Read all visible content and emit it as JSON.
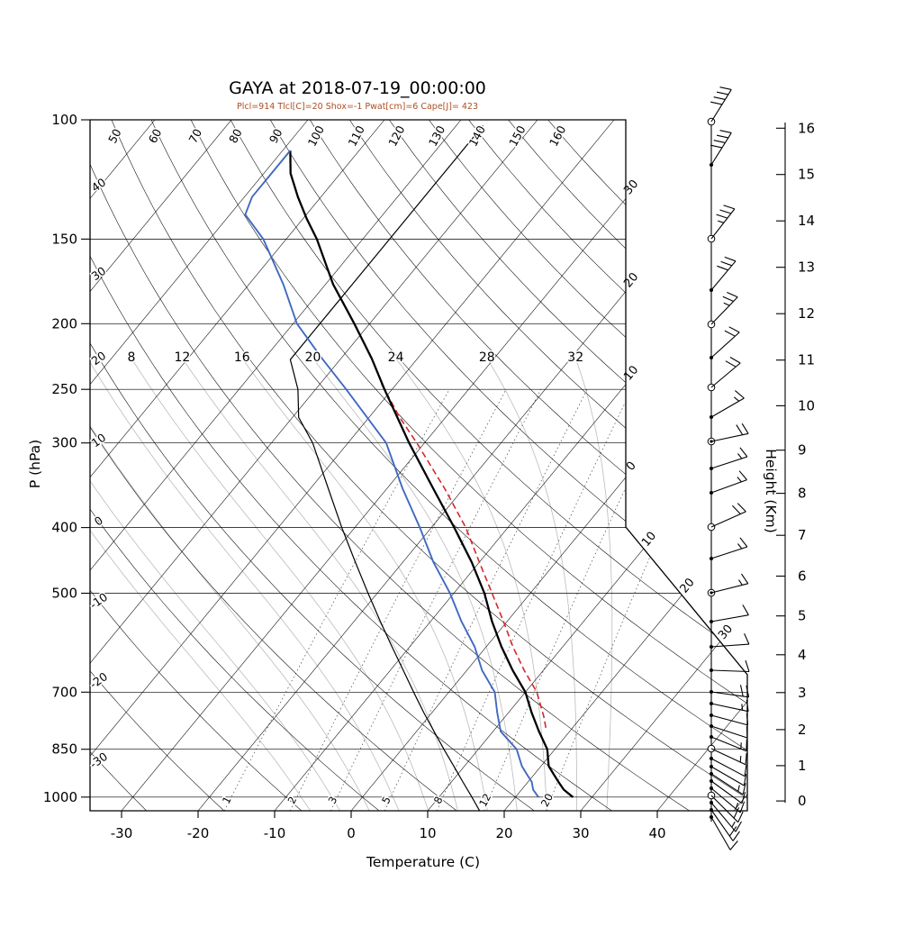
{
  "chart": {
    "title": "GAYA at 2018-07-19_00:00:00",
    "subtitle": "Plcl=914 Tlcl[C]=20 Shox=-1 Pwat[cm]=6 Cape[J]= 423",
    "xlabel": "Temperature (C)",
    "ylabel": "P (hPa)",
    "y2label": "Height (Km)"
  },
  "chart_data": {
    "type": "skewt_logp_sounding",
    "station": "GAYA",
    "valid_time": "2018-07-19_00:00:00",
    "indices": {
      "Plcl_hPa": 914,
      "Tlcl_C": 20,
      "Shox": -1,
      "Pwat_cm": 6,
      "Cape_J": 423
    },
    "colors": {
      "temperature": "#000000",
      "dewpoint": "#4169c1",
      "parcel": "#d62728",
      "subtitle": "#ad4f21",
      "moist_adiabat": "#bbbbbb"
    },
    "axes": {
      "pressure_ticks_hPa": [
        100,
        150,
        200,
        250,
        300,
        400,
        500,
        700,
        850,
        1000
      ],
      "temperature_ticks_C": [
        -30,
        -20,
        -10,
        0,
        10,
        20,
        30,
        40
      ],
      "height_ticks_km": [
        0,
        1,
        2,
        3,
        4,
        5,
        6,
        7,
        8,
        9,
        10,
        11,
        12,
        13,
        14,
        15,
        16
      ]
    },
    "grid": {
      "isotherms_C": {
        "min": -120,
        "max": 60,
        "step": 10
      },
      "dry_adiabats_C": {
        "min": -30,
        "max": 160,
        "step": 10
      },
      "dry_adiabat_top_labels": [
        50,
        60,
        70,
        80,
        90,
        100,
        110,
        120,
        130,
        140,
        150,
        160
      ],
      "dry_adiabat_left_labels": [
        40,
        30,
        20,
        10,
        0,
        -10,
        -20,
        -30
      ],
      "isotherm_edge_label_temps": [
        -30,
        -20,
        -10,
        0,
        10,
        20,
        30
      ],
      "isotherm_edge_labels": [
        "30",
        "20",
        "10",
        "0",
        "10",
        "20",
        "30"
      ],
      "moist_adiabats_C": [
        -8,
        -4,
        0,
        4,
        8,
        12,
        16,
        20,
        24,
        28,
        32
      ],
      "moist_adiabat_labels": [
        8,
        12,
        16,
        20,
        24,
        28,
        32
      ],
      "mixing_ratio_g_kg": [
        1,
        2,
        3,
        5,
        8,
        12,
        20
      ]
    },
    "series": {
      "temperature": {
        "name": "temperature",
        "pressure_hPa": [
          1000,
          975,
          950,
          925,
          900,
          850,
          800,
          750,
          700,
          650,
          600,
          550,
          500,
          450,
          400,
          350,
          300,
          250,
          225,
          200,
          175,
          150,
          140,
          130,
          120,
          111
        ],
        "value_C": [
          27.5,
          25.5,
          24,
          22.5,
          21,
          19,
          16,
          13,
          10,
          6,
          2,
          -2,
          -6,
          -11,
          -17,
          -24,
          -32,
          -41,
          -46,
          -52,
          -59,
          -66,
          -69.5,
          -73,
          -76.5,
          -79
        ]
      },
      "dewpoint": {
        "name": "dewpoint",
        "pressure_hPa": [
          1000,
          975,
          950,
          925,
          900,
          850,
          800,
          750,
          700,
          650,
          600,
          550,
          500,
          450,
          400,
          350,
          300,
          250,
          225,
          200,
          175,
          150,
          138,
          130,
          120,
          111
        ],
        "value_C": [
          23,
          21.5,
          20.5,
          19,
          17.5,
          15,
          11,
          8.5,
          6,
          2,
          -1.5,
          -6,
          -10.5,
          -16,
          -21.5,
          -28,
          -35,
          -46,
          -52.5,
          -59.5,
          -65.5,
          -73,
          -78,
          -79,
          -79,
          -79
        ]
      },
      "parcel": {
        "name": "parcel-path",
        "pressure_hPa": [
          790,
          760,
          700,
          650,
          600,
          550,
          500,
          450,
          400,
          350,
          300,
          275,
          250,
          243
        ],
        "value_C": [
          16.5,
          15,
          11.5,
          7.5,
          3.5,
          -0.5,
          -5,
          -10,
          -15.5,
          -22.5,
          -31,
          -36,
          -41,
          -42.5
        ]
      },
      "std_atmosphere": {
        "name": "standard-atmosphere",
        "pressure_hPa": [
          1048,
          1000,
          950,
          900,
          850,
          800,
          750,
          700,
          650,
          600,
          550,
          500,
          450,
          400,
          350,
          300,
          275,
          250,
          226,
          200,
          175,
          150,
          125,
          102
        ],
        "value_C": [
          16.8,
          14.3,
          11.5,
          8.6,
          5.5,
          2.3,
          -1.1,
          -4.6,
          -8.3,
          -12.3,
          -16.6,
          -21.2,
          -26.2,
          -31.7,
          -37.7,
          -44.6,
          -49.2,
          -52.3,
          -56.5,
          -56.5,
          -56.5,
          -56.5,
          -56.5,
          -56.5
        ]
      }
    },
    "wind_barbs": {
      "levels_format": [
        "y_px",
        "angle_deg",
        "full_barbs",
        "half_barbs",
        "marker"
      ],
      "levels": [
        [
          135,
          -58,
          4,
          0,
          "open"
        ],
        [
          183,
          -58,
          4,
          0,
          "dot"
        ],
        [
          265,
          -52,
          3,
          1,
          "open"
        ],
        [
          322,
          -50,
          3,
          0,
          "dot"
        ],
        [
          360,
          -46,
          2,
          1,
          "open"
        ],
        [
          397,
          -42,
          2,
          0,
          "dot"
        ],
        [
          430,
          -40,
          2,
          0,
          "open"
        ],
        [
          463,
          -30,
          1,
          1,
          "dot"
        ],
        [
          490,
          -12,
          2,
          0,
          "double"
        ],
        [
          520,
          -18,
          1,
          1,
          "dot"
        ],
        [
          547,
          -20,
          1,
          1,
          "dot"
        ],
        [
          585,
          -24,
          2,
          0,
          "open"
        ],
        [
          620,
          -18,
          1,
          1,
          "dot"
        ],
        [
          658,
          -14,
          1,
          1,
          "double"
        ],
        [
          690,
          -10,
          1,
          0,
          "dot"
        ],
        [
          718,
          -4,
          1,
          0,
          "dot"
        ],
        [
          744,
          2,
          1,
          0,
          "dot"
        ],
        [
          768,
          8,
          2,
          0,
          "dot"
        ],
        [
          781,
          12,
          1,
          1,
          "dot"
        ],
        [
          794,
          15,
          1,
          0,
          "dot"
        ],
        [
          806,
          18,
          1,
          0,
          "dot"
        ],
        [
          818,
          22,
          1,
          1,
          "dot"
        ],
        [
          831,
          25,
          1,
          1,
          "open"
        ],
        [
          842,
          28,
          1,
          0,
          "dot"
        ],
        [
          851,
          30,
          1,
          0,
          "dot"
        ],
        [
          859,
          33,
          1,
          1,
          "dot"
        ],
        [
          867,
          36,
          1,
          0,
          "dot"
        ],
        [
          875,
          40,
          1,
          1,
          "dot"
        ],
        [
          883,
          45,
          2,
          0,
          "open"
        ],
        [
          891,
          50,
          1,
          1,
          "dot"
        ],
        [
          899,
          55,
          2,
          0,
          "dot"
        ],
        [
          907,
          60,
          1,
          0,
          "dot"
        ]
      ]
    }
  }
}
